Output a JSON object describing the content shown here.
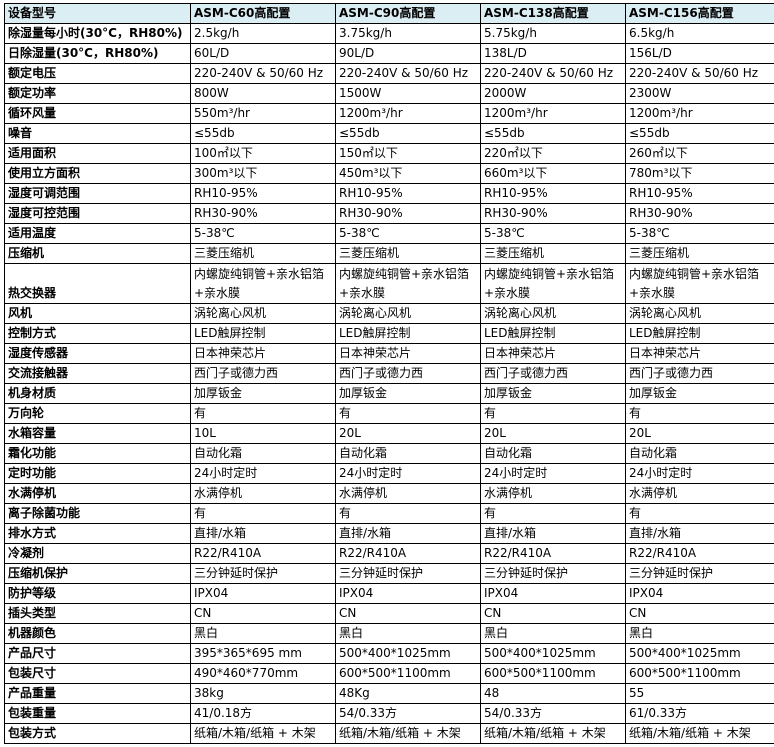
{
  "header": [
    "设备型号",
    "ASM-C60高配置",
    "ASM-C90高配置",
    "ASM-C138高配置",
    "ASM-C156高配置"
  ],
  "rows": [
    [
      "除湿量每小时(30°C，RH80%)",
      "2.5kg/h",
      "3.75kg/h",
      "5.75kg/h",
      "6.5kg/h"
    ],
    [
      "日除湿量(30°C，RH80%)",
      "60L/D",
      "90L/D",
      "138L/D",
      "156L/D"
    ],
    [
      "额定电压",
      "220-240V & 50/60 Hz",
      "220-240V & 50/60 Hz",
      "220-240V & 50/60 Hz",
      "220-240V & 50/60 Hz"
    ],
    [
      "额定功率",
      "800W",
      "1500W",
      "2000W",
      "2300W"
    ],
    [
      "循环风量",
      "550m³/hr",
      "1200m³/hr",
      "1200m³/hr",
      "1200m³/hr"
    ],
    [
      "噪音",
      "≤55db",
      "≤55db",
      "≤55db",
      "≤55db"
    ],
    [
      "适用面积",
      "100㎡以下",
      "150㎡以下",
      "220㎡以下",
      "260㎡以下"
    ],
    [
      "使用立方面积",
      "300m³以下",
      "450m³以下",
      "660m³以下",
      "780m³以下"
    ],
    [
      "湿度可调范围",
      "RH10-95%",
      "RH10-95%",
      "RH10-95%",
      "RH10-95%"
    ],
    [
      "湿度可控范围",
      "RH30-90%",
      "RH30-90%",
      "RH30-90%",
      "RH30-90%"
    ],
    [
      "适用温度",
      "5-38℃",
      "5-38℃",
      "5-38℃",
      "5-38℃"
    ],
    [
      "压缩机",
      "三菱压缩机",
      "三菱压缩机",
      "三菱压缩机",
      "三菱压缩机"
    ],
    [
      "热交换器",
      "内螺旋纯铜管+亲水铝箔+亲水膜",
      "内螺旋纯铜管+亲水铝箔+亲水膜",
      "内螺旋纯铜管+亲水铝箔+亲水膜",
      "内螺旋纯铜管+亲水铝箔+亲水膜"
    ],
    [
      "风机",
      "涡轮离心风机",
      "涡轮离心风机",
      "涡轮离心风机",
      "涡轮离心风机"
    ],
    [
      "控制方式",
      "LED触屏控制",
      "LED触屏控制",
      "LED触屏控制",
      "LED触屏控制"
    ],
    [
      "湿度传感器",
      "日本神荣芯片",
      "日本神荣芯片",
      "日本神荣芯片",
      "日本神荣芯片"
    ],
    [
      "交流接触器",
      "西门子或德力西",
      "西门子或德力西",
      "西门子或德力西",
      "西门子或德力西"
    ],
    [
      "机身材质",
      "加厚钣金",
      "加厚钣金",
      "加厚钣金",
      "加厚钣金"
    ],
    [
      "万向轮",
      "有",
      "有",
      "有",
      "有"
    ],
    [
      "水箱容量",
      "10L",
      "20L",
      "20L",
      "20L"
    ],
    [
      "霜化功能",
      "自动化霜",
      "自动化霜",
      "自动化霜",
      "自动化霜"
    ],
    [
      "定时功能",
      "24小时定时",
      "24小时定时",
      "24小时定时",
      "24小时定时"
    ],
    [
      "水满停机",
      "水满停机",
      "水满停机",
      "水满停机",
      "水满停机"
    ],
    [
      "离子除菌功能",
      "有",
      "有",
      "有",
      "有"
    ],
    [
      "排水方式",
      "直排/水箱",
      "直排/水箱",
      "直排/水箱",
      "直排/水箱"
    ],
    [
      "冷凝剂",
      "R22/R410A",
      "R22/R410A",
      "R22/R410A",
      "R22/R410A"
    ],
    [
      "压缩机保护",
      "三分钟延时保护",
      "三分钟延时保护",
      "三分钟延时保护",
      "三分钟延时保护"
    ],
    [
      "防护等级",
      "IPX04",
      "IPX04",
      "IPX04",
      "IPX04"
    ],
    [
      "插头类型",
      "CN",
      "CN",
      "CN",
      "CN"
    ],
    [
      "机器颜色",
      "黑白",
      "黑白",
      "黑白",
      "黑白"
    ],
    [
      "产品尺寸",
      "395*365*695 mm",
      "500*400*1025mm",
      "500*400*1025mm",
      "500*400*1025mm"
    ],
    [
      "包装尺寸",
      "490*460*770mm",
      "600*500*1100mm",
      "600*500*1100mm",
      "600*500*1100mm"
    ],
    [
      "产品重量",
      "38kg",
      "48Kg",
      "48",
      "55"
    ],
    [
      "包装重量",
      "41/0.18方",
      "54/0.33方",
      "54/0.33方",
      "61/0.33方"
    ],
    [
      "包装方式",
      "纸箱/木箱/纸箱 + 木架",
      "纸箱/木箱/纸箱 + 木架",
      "纸箱/木箱/纸箱 + 木架",
      "纸箱/木箱/纸箱 + 木架"
    ]
  ],
  "colors": {
    "header_bg": "#dbeef4",
    "border": "#000000"
  }
}
